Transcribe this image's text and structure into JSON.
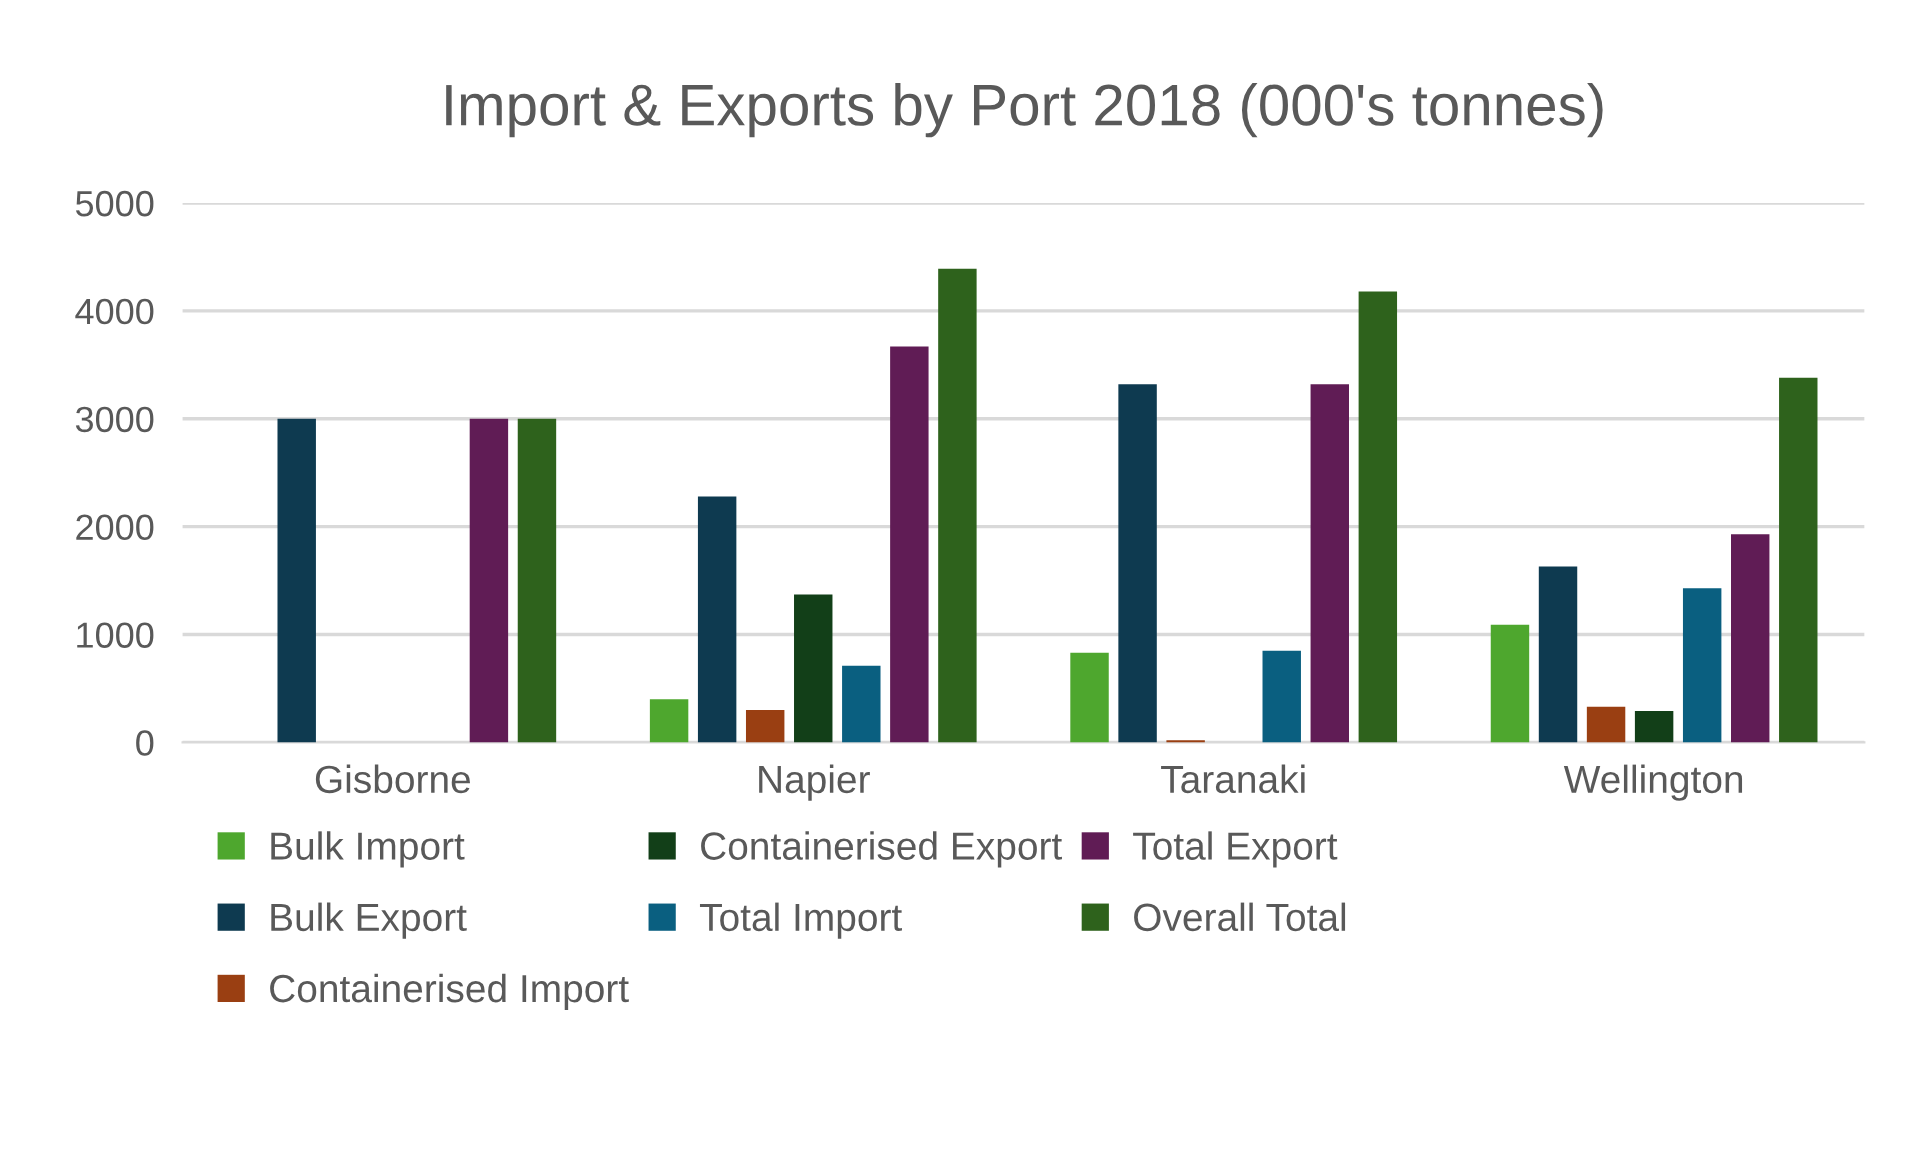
{
  "chart_data": {
    "type": "bar",
    "title": "Import & Exports by Port 2018 (000's tonnes)",
    "categories": [
      "Gisborne",
      "Napier",
      "Taranaki",
      "Wellington"
    ],
    "series": [
      {
        "name": "Bulk Import",
        "color": "#4ea72e",
        "values": [
          0,
          400,
          830,
          1090
        ]
      },
      {
        "name": "Bulk Export",
        "color": "#0e3a50",
        "values": [
          3000,
          2280,
          3320,
          1630
        ]
      },
      {
        "name": "Containerised Import",
        "color": "#9a3f12",
        "values": [
          0,
          300,
          20,
          330
        ]
      },
      {
        "name": "Containerised Export",
        "color": "#123f18",
        "values": [
          0,
          1370,
          0,
          290
        ]
      },
      {
        "name": "Total Import",
        "color": "#0a5f80",
        "values": [
          0,
          710,
          850,
          1430
        ]
      },
      {
        "name": "Total Export",
        "color": "#601c55",
        "values": [
          3000,
          3670,
          3320,
          1930
        ]
      },
      {
        "name": "Overall Total",
        "color": "#2e621c",
        "values": [
          3000,
          4390,
          4180,
          3380
        ]
      }
    ],
    "ylim": [
      0,
      5000
    ],
    "yticks": [
      0,
      1000,
      2000,
      3000,
      4000,
      5000
    ],
    "grid": "y",
    "legend": "bottom"
  }
}
